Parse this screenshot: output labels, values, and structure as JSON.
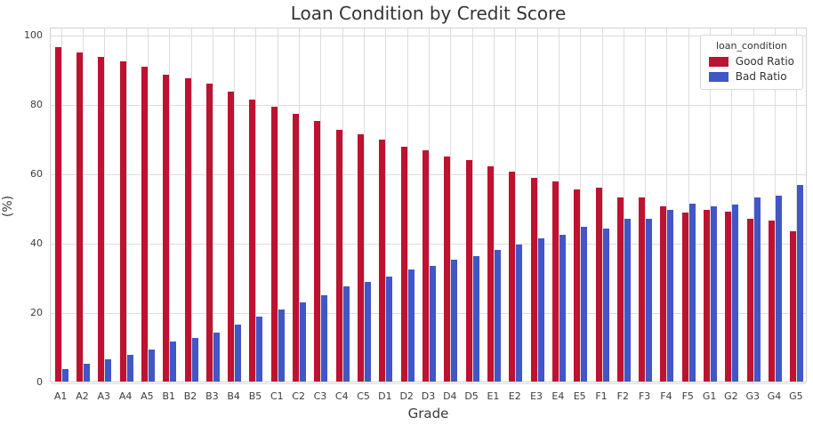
{
  "chart_data": {
    "type": "bar",
    "title": "Loan Condition by Credit Score",
    "xlabel": "Grade",
    "ylabel": "(%)",
    "categories": [
      "A1",
      "A2",
      "A3",
      "A4",
      "A5",
      "B1",
      "B2",
      "B3",
      "B4",
      "B5",
      "C1",
      "C2",
      "C3",
      "C4",
      "C5",
      "D1",
      "D2",
      "D3",
      "D4",
      "D5",
      "E1",
      "E2",
      "E3",
      "E4",
      "E5",
      "F1",
      "F2",
      "F3",
      "F4",
      "F5",
      "G1",
      "G2",
      "G3",
      "G4",
      "G5"
    ],
    "series": [
      {
        "name": "Good Ratio",
        "color": "#be1230",
        "values": [
          96.3,
          94.9,
          93.7,
          92.3,
          90.8,
          88.4,
          87.5,
          85.9,
          83.5,
          81.4,
          79.2,
          77.2,
          75.1,
          72.5,
          71.2,
          69.8,
          67.7,
          66.6,
          64.9,
          63.8,
          62.0,
          60.6,
          58.8,
          57.8,
          55.3,
          55.9,
          53.0,
          53.0,
          50.4,
          48.6,
          49.5,
          49.1,
          47.0,
          46.4,
          43.4
        ]
      },
      {
        "name": "Bad Ratio",
        "color": "#4156c8",
        "values": [
          3.7,
          5.1,
          6.3,
          7.7,
          9.2,
          11.6,
          12.5,
          14.1,
          16.5,
          18.6,
          20.8,
          22.8,
          24.9,
          27.5,
          28.8,
          30.2,
          32.3,
          33.4,
          35.1,
          36.2,
          38.0,
          39.4,
          41.2,
          42.2,
          44.7,
          44.1,
          47.0,
          47.0,
          49.6,
          51.4,
          50.5,
          50.9,
          53.0,
          53.6,
          56.6
        ]
      }
    ],
    "ylim": [
      0,
      102.3
    ],
    "yticks": [
      0,
      20,
      40,
      60,
      80,
      100
    ],
    "grid": true,
    "legend": {
      "title": "loan_condition",
      "position": "upper right"
    },
    "colors": {
      "grid": "#dcdcdc",
      "frame": "#d2d2d2",
      "text": "#3c3c3c"
    }
  }
}
